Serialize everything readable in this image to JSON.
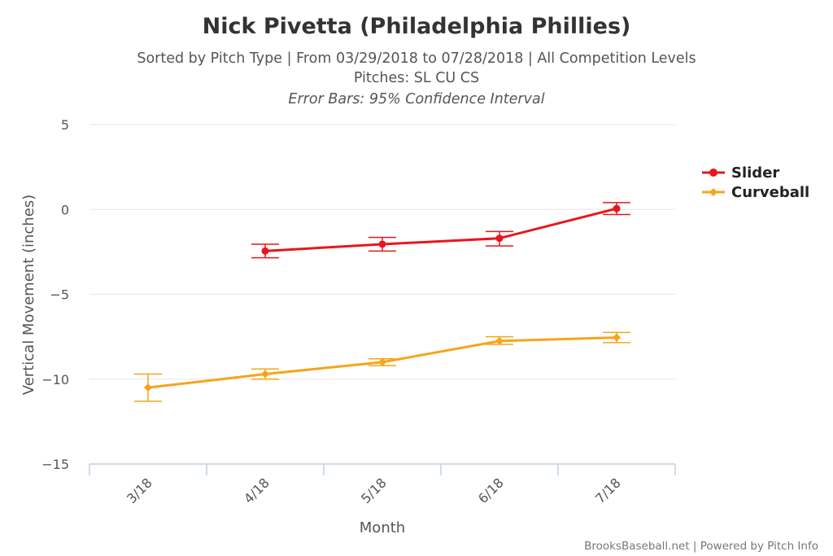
{
  "chart_data": {
    "type": "line",
    "title": "Nick Pivetta (Philadelphia Phillies)",
    "subtitle_lines": [
      "Sorted by Pitch Type | From 03/29/2018 to 07/28/2018 | All Competition Levels",
      "Pitches: SL CU CS",
      "Error Bars: 95% Confidence Interval"
    ],
    "xlabel": "Month",
    "ylabel": "Vertical Movement (inches)",
    "categories": [
      "3/18",
      "4/18",
      "5/18",
      "6/18",
      "7/18"
    ],
    "ylim": [
      -15,
      5
    ],
    "yticks": [
      5,
      0,
      -5,
      -10,
      -15
    ],
    "ytick_labels": [
      "5",
      "0",
      "−5",
      "−10",
      "−15"
    ],
    "grid": true,
    "legend_position": "right",
    "series": [
      {
        "name": "Slider",
        "color": "#e8161c",
        "marker": "circle",
        "values": [
          null,
          -2.45,
          -2.05,
          -1.7,
          0.05
        ],
        "error_low": [
          null,
          -2.85,
          -2.45,
          -2.15,
          -0.3
        ],
        "error_high": [
          null,
          -2.05,
          -1.65,
          -1.3,
          0.4
        ]
      },
      {
        "name": "Curveball",
        "color": "#f5a519",
        "marker": "diamond",
        "values": [
          -10.5,
          -9.7,
          -9.0,
          -7.75,
          -7.55
        ],
        "error_low": [
          -11.3,
          -10.0,
          -9.2,
          -7.95,
          -7.85
        ],
        "error_high": [
          -9.7,
          -9.4,
          -8.8,
          -7.5,
          -7.25
        ]
      }
    ],
    "credit": "BrooksBaseball.net | Powered by Pitch Info"
  }
}
